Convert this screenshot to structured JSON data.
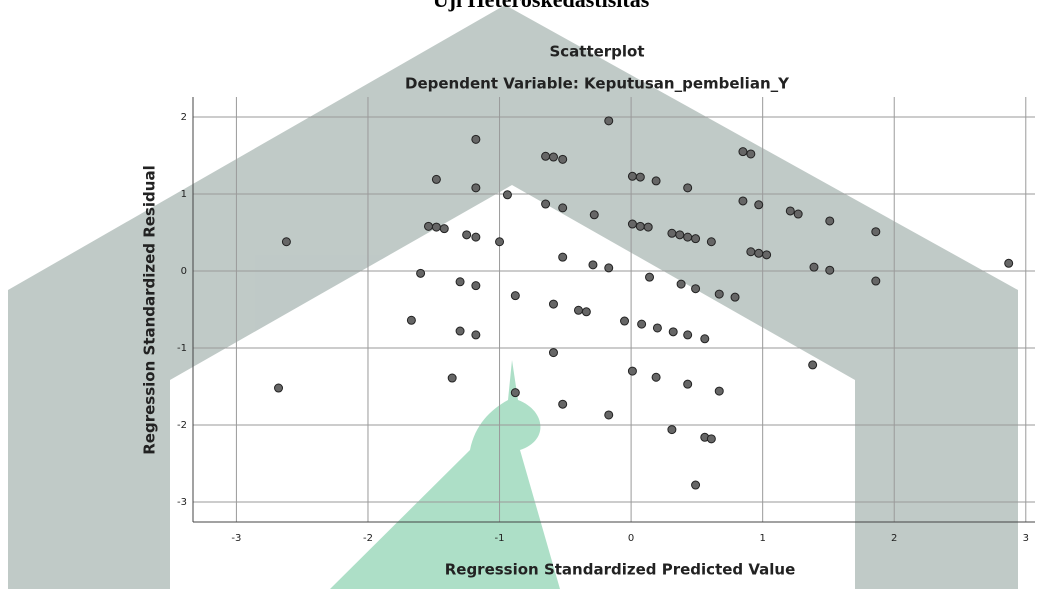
{
  "page_heading": "Uji Heteroskedastisitas",
  "chart_data": {
    "type": "scatter",
    "title": "Scatterplot",
    "subtitle": "Dependent Variable: Keputusan_pembelian_Y",
    "x_label": "Regression Standardized Predicted Value",
    "y_label": "Regression Standardized Residual",
    "color": "#666666",
    "grid": true,
    "xlim": [
      -3.33,
      3.07
    ],
    "ylim": [
      -3.26,
      2.26
    ],
    "xticks": [
      -3,
      -2,
      -1,
      0,
      1,
      2,
      3
    ],
    "yticks": [
      -3,
      -2,
      -1,
      0,
      1,
      2
    ],
    "x": [
      -2.62,
      -2.68,
      -1.48,
      -1.18,
      -1.18,
      -1.54,
      -1.48,
      -1.42,
      -1.25,
      -1.18,
      -1.0,
      -0.94,
      -1.6,
      -1.3,
      -1.18,
      -0.88,
      -1.67,
      -1.3,
      -1.18,
      -1.36,
      -0.88,
      -0.65,
      -0.59,
      -0.52,
      -0.65,
      -0.52,
      -0.28,
      -0.17,
      -0.52,
      -0.29,
      -0.17,
      -0.59,
      -0.4,
      -0.34,
      -0.59,
      -0.52,
      -0.17,
      0.01,
      0.07,
      0.19,
      0.43,
      0.01,
      0.07,
      0.13,
      0.31,
      0.37,
      0.43,
      0.49,
      0.61,
      0.14,
      0.38,
      0.49,
      0.67,
      0.79,
      -0.05,
      0.08,
      0.2,
      0.32,
      0.43,
      0.56,
      0.01,
      0.19,
      0.43,
      0.67,
      0.31,
      0.56,
      0.61,
      0.49,
      0.85,
      0.91,
      0.85,
      0.97,
      0.91,
      0.97,
      1.03,
      1.21,
      1.27,
      1.51,
      1.39,
      1.51,
      1.38,
      1.86,
      1.86,
      2.87
    ],
    "values": [
      0.38,
      -1.52,
      1.19,
      1.71,
      1.08,
      0.58,
      0.57,
      0.55,
      0.47,
      0.44,
      0.38,
      0.99,
      -0.03,
      -0.14,
      -0.19,
      -0.32,
      -0.64,
      -0.78,
      -0.83,
      -1.39,
      -1.58,
      1.49,
      1.48,
      1.45,
      0.87,
      0.82,
      0.73,
      1.95,
      0.18,
      0.08,
      0.04,
      -0.43,
      -0.51,
      -0.53,
      -1.06,
      -1.73,
      -1.87,
      1.23,
      1.22,
      1.17,
      1.08,
      0.61,
      0.58,
      0.57,
      0.49,
      0.47,
      0.44,
      0.42,
      0.38,
      -0.08,
      -0.17,
      -0.23,
      -0.3,
      -0.34,
      -0.65,
      -0.69,
      -0.74,
      -0.79,
      -0.83,
      -0.88,
      -1.3,
      -1.38,
      -1.47,
      -1.56,
      -2.06,
      -2.16,
      -2.18,
      -2.78,
      1.55,
      1.52,
      0.91,
      0.86,
      0.25,
      0.23,
      0.21,
      0.78,
      0.74,
      0.65,
      0.05,
      0.01,
      -1.22,
      0.51,
      -0.13,
      0.1
    ]
  }
}
